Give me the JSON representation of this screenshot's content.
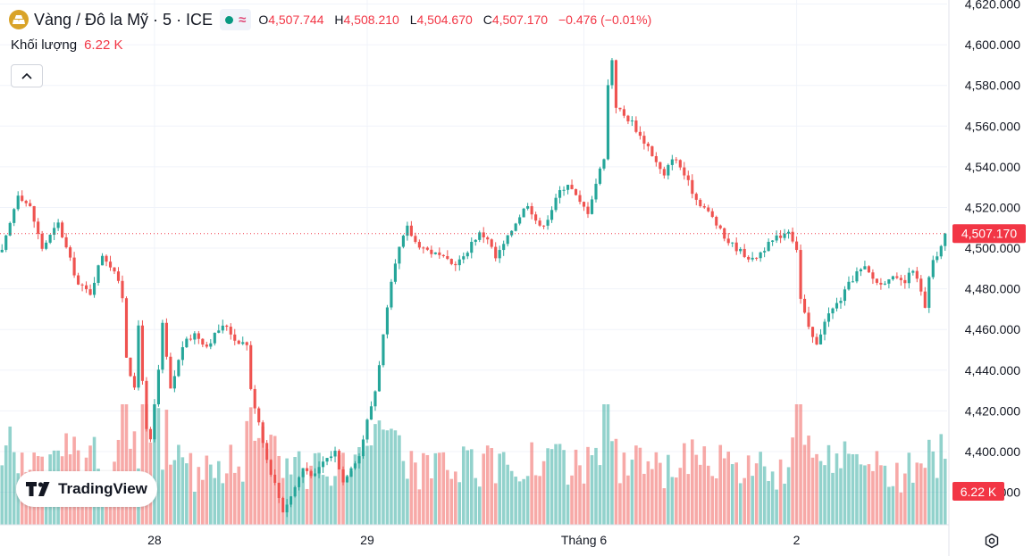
{
  "legend": {
    "title": "Vàng / Đô la Mỹ · 5 · ICE",
    "icon": "gold-bars-icon",
    "o_label": "O",
    "o_value": "4,507.744",
    "h_label": "H",
    "h_value": "4,508.210",
    "l_label": "L",
    "l_value": "4,504.670",
    "c_label": "C",
    "c_value": "4,507.170",
    "change": "−0.476 (−0.01%)"
  },
  "volume": {
    "label": "Khối lượng",
    "value": "6.22 K"
  },
  "brand": {
    "name": "TradingView"
  },
  "colors": {
    "up": "#26a69a",
    "down": "#ef5350",
    "price_label": "#f23645",
    "grid": "#f0f3fa",
    "axis_text": "#131722"
  },
  "chart_data": {
    "type": "candlestick",
    "symbol": "Vàng / Đô la Mỹ",
    "interval": "5",
    "exchange": "ICE",
    "y_axis": {
      "ticks": [
        4380,
        4400,
        4420,
        4440,
        4460,
        4480,
        4500,
        4520,
        4540,
        4560,
        4580,
        4600,
        4620
      ],
      "tick_labels": [
        "4,380.000",
        "4,400.000",
        "4,420.000",
        "4,440.000",
        "4,460.000",
        "4,480.000",
        "4,500.000",
        "4,520.000",
        "4,540.000",
        "4,560.000",
        "4,580.000",
        "4,600.000",
        "4,620.000"
      ],
      "range": [
        4364,
        4622
      ]
    },
    "x_axis": {
      "tick_labels": [
        "28",
        "29",
        "Tháng 6",
        "2"
      ],
      "tick_positions": [
        38,
        91,
        145,
        198
      ],
      "bars_total": 236
    },
    "last_price": 4507.17,
    "last_price_label": "4,507.170",
    "last_volume_label": "6.22 K",
    "price_path": [
      [
        0,
        4498
      ],
      [
        2,
        4512
      ],
      [
        4,
        4527
      ],
      [
        7,
        4520
      ],
      [
        10,
        4500
      ],
      [
        14,
        4512
      ],
      [
        16,
        4500
      ],
      [
        19,
        4482
      ],
      [
        22,
        4478
      ],
      [
        25,
        4497
      ],
      [
        28,
        4489
      ],
      [
        30,
        4476
      ],
      [
        31,
        4447
      ],
      [
        33,
        4430
      ],
      [
        34,
        4462
      ],
      [
        36,
        4410
      ],
      [
        37,
        4405
      ],
      [
        39,
        4440
      ],
      [
        40,
        4462
      ],
      [
        42,
        4430
      ],
      [
        45,
        4452
      ],
      [
        48,
        4458
      ],
      [
        51,
        4452
      ],
      [
        54,
        4460
      ],
      [
        56,
        4462
      ],
      [
        58,
        4455
      ],
      [
        61,
        4453
      ],
      [
        62,
        4430
      ],
      [
        64,
        4415
      ],
      [
        66,
        4396
      ],
      [
        68,
        4384
      ],
      [
        70,
        4371
      ],
      [
        72,
        4378
      ],
      [
        75,
        4392
      ],
      [
        78,
        4388
      ],
      [
        80,
        4395
      ],
      [
        83,
        4400
      ],
      [
        85,
        4385
      ],
      [
        87,
        4393
      ],
      [
        89,
        4398
      ],
      [
        91,
        4415
      ],
      [
        93,
        4430
      ],
      [
        95,
        4457
      ],
      [
        97,
        4482
      ],
      [
        99,
        4500
      ],
      [
        101,
        4510
      ],
      [
        103,
        4503
      ],
      [
        106,
        4499
      ],
      [
        109,
        4496
      ],
      [
        112,
        4492
      ],
      [
        115,
        4495
      ],
      [
        117,
        4503
      ],
      [
        119,
        4507
      ],
      [
        121,
        4505
      ],
      [
        123,
        4495
      ],
      [
        126,
        4505
      ],
      [
        128,
        4513
      ],
      [
        131,
        4522
      ],
      [
        134,
        4510
      ],
      [
        136,
        4515
      ],
      [
        139,
        4528
      ],
      [
        141,
        4532
      ],
      [
        144,
        4522
      ],
      [
        146,
        4518
      ],
      [
        148,
        4532
      ],
      [
        150,
        4545
      ],
      [
        151,
        4580
      ],
      [
        152,
        4593
      ],
      [
        153,
        4570
      ],
      [
        155,
        4565
      ],
      [
        157,
        4562
      ],
      [
        159,
        4555
      ],
      [
        161,
        4550
      ],
      [
        163,
        4542
      ],
      [
        165,
        4535
      ],
      [
        167,
        4545
      ],
      [
        169,
        4540
      ],
      [
        171,
        4532
      ],
      [
        173,
        4524
      ],
      [
        175,
        4520
      ],
      [
        177,
        4515
      ],
      [
        180,
        4505
      ],
      [
        183,
        4500
      ],
      [
        185,
        4497
      ],
      [
        187,
        4494
      ],
      [
        190,
        4500
      ],
      [
        193,
        4505
      ],
      [
        196,
        4509
      ],
      [
        198,
        4500
      ],
      [
        199,
        4475
      ],
      [
        201,
        4460
      ],
      [
        203,
        4452
      ],
      [
        205,
        4465
      ],
      [
        207,
        4470
      ],
      [
        209,
        4475
      ],
      [
        211,
        4482
      ],
      [
        213,
        4488
      ],
      [
        215,
        4490
      ],
      [
        217,
        4485
      ],
      [
        219,
        4482
      ],
      [
        221,
        4486
      ],
      [
        223,
        4484
      ],
      [
        225,
        4483
      ],
      [
        227,
        4490
      ],
      [
        229,
        4478
      ],
      [
        230,
        4470
      ],
      [
        231,
        4485
      ],
      [
        232,
        4493
      ],
      [
        234,
        4500
      ],
      [
        235,
        4507.17
      ]
    ],
    "volume_scale_max": 6.5
  }
}
